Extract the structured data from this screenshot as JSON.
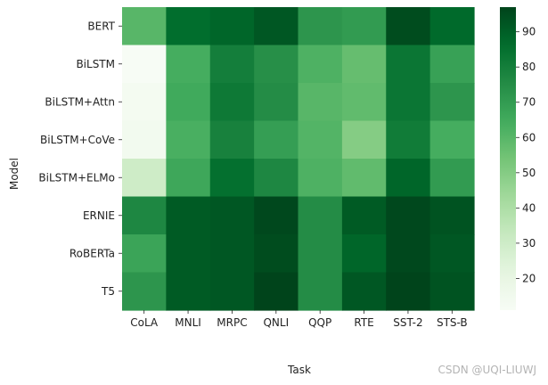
{
  "chart_data": {
    "type": "heatmap",
    "xlabel": "Task",
    "ylabel": "Model",
    "x_categories": [
      "CoLA",
      "MNLI",
      "MRPC",
      "QNLI",
      "QQP",
      "RTE",
      "SST-2",
      "STS-B"
    ],
    "y_categories": [
      "BERT",
      "BiLSTM",
      "BiLSTM+Attn",
      "BiLSTM+CoVe",
      "BiLSTM+ELMo",
      "ERNIE",
      "RoBERTa",
      "T5"
    ],
    "values": [
      [
        60,
        86,
        88,
        92,
        72,
        70,
        95,
        87
      ],
      [
        11,
        64,
        80,
        74,
        62,
        57,
        83,
        68
      ],
      [
        13,
        65,
        82,
        75,
        60,
        58,
        83,
        72
      ],
      [
        14,
        63,
        79,
        69,
        61,
        50,
        81,
        64
      ],
      [
        30,
        66,
        85,
        77,
        62,
        58,
        88,
        70
      ],
      [
        77,
        91,
        92,
        96,
        75,
        91,
        96,
        93
      ],
      [
        67,
        91,
        92,
        95,
        75,
        88,
        96,
        92
      ],
      [
        72,
        91,
        92,
        97,
        75,
        92,
        97,
        93
      ]
    ],
    "colorbar": {
      "min": 11,
      "max": 97,
      "ticks": [
        20,
        30,
        40,
        50,
        60,
        70,
        80,
        90
      ]
    },
    "colormap": "Greens",
    "colors": {
      "low": "#f7fcf5",
      "high": "#00441b"
    }
  },
  "watermark": "CSDN @UQI-LIUWJ"
}
